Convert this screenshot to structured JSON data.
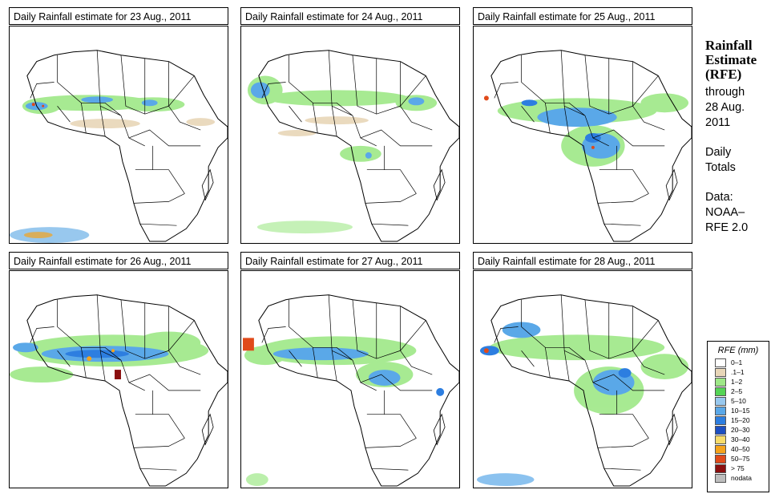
{
  "panels": [
    {
      "title": "Daily Rainfall estimate for  23 Aug., 2011"
    },
    {
      "title": "Daily Rainfall estimate for  24 Aug., 2011"
    },
    {
      "title": "Daily Rainfall estimate for  25 Aug., 2011"
    },
    {
      "title": "Daily Rainfall estimate for  26 Aug., 2011"
    },
    {
      "title": "Daily Rainfall estimate for  27 Aug., 2011"
    },
    {
      "title": "Daily Rainfall estimate for  28 Aug., 2011"
    }
  ],
  "side": {
    "title_line1": "Rainfall",
    "title_line2": "Estimate",
    "title_line3": "(RFE)",
    "through_label": "through",
    "through_date_line1": "28 Aug.",
    "through_date_line2": "2011",
    "daily_line1": "Daily",
    "daily_line2": "Totals",
    "data_label": "Data:",
    "data_source_line1": "NOAA–",
    "data_source_line2": "RFE 2.0"
  },
  "legend": {
    "title": "RFE (mm)",
    "items": [
      {
        "label": "0–1",
        "color": "#ffffff"
      },
      {
        "label": ".1–1",
        "color": "#e8d6b8"
      },
      {
        "label": "1–2",
        "color": "#9ee887"
      },
      {
        "label": "2–5",
        "color": "#55d455"
      },
      {
        "label": "5–10",
        "color": "#98c8ee"
      },
      {
        "label": "10–15",
        "color": "#5aa8e8"
      },
      {
        "label": "15–20",
        "color": "#2d7ee0"
      },
      {
        "label": "20–30",
        "color": "#1d4fc2"
      },
      {
        "label": "30–40",
        "color": "#f8dc6a"
      },
      {
        "label": "40–50",
        "color": "#f5a31c"
      },
      {
        "label": "50–75",
        "color": "#e04a1a"
      },
      {
        "label": "> 75",
        "color": "#8b0f0f"
      },
      {
        "label": "nodata",
        "color": "#bdbdbd"
      }
    ]
  }
}
